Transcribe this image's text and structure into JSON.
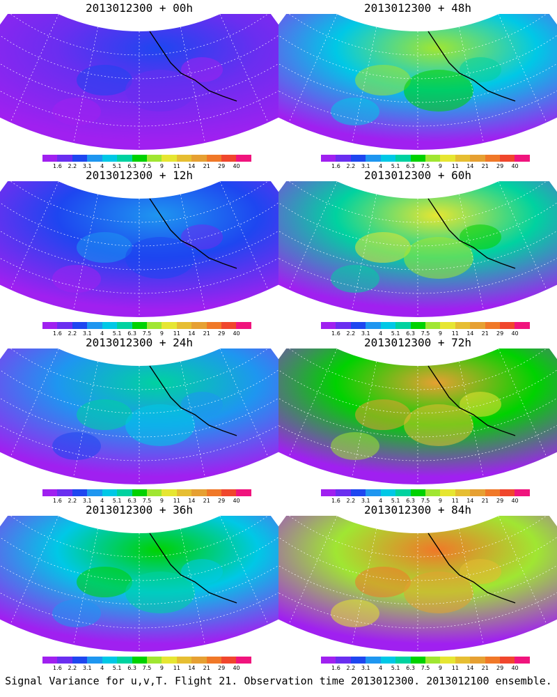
{
  "panels": [
    {
      "title": "2013012300 + 00h",
      "level": 0.15
    },
    {
      "title": "2013012300 + 48h",
      "level": 0.55
    },
    {
      "title": "2013012300 + 12h",
      "level": 0.25
    },
    {
      "title": "2013012300 + 60h",
      "level": 0.65
    },
    {
      "title": "2013012300 + 24h",
      "level": 0.35
    },
    {
      "title": "2013012300 + 72h",
      "level": 0.75
    },
    {
      "title": "2013012300 + 36h",
      "level": 0.45
    },
    {
      "title": "2013012300 + 84h",
      "level": 0.85
    }
  ],
  "colorbar": {
    "labels": [
      "1.6",
      "2.2",
      "3.1",
      "4",
      "5.1",
      "6.3",
      "7.5",
      "9",
      "11",
      "14",
      "21",
      "29",
      "40"
    ],
    "colors": [
      "#a020f0",
      "#6a2ef0",
      "#1e46f0",
      "#1e96f0",
      "#00c8e6",
      "#00d2a0",
      "#00d200",
      "#a0e632",
      "#e6e632",
      "#e6be32",
      "#e6a032",
      "#f07828",
      "#f0462d",
      "#f0147d"
    ]
  },
  "caption": "Signal Variance for u,v,T. Flight 21. Observation time 2013012300. 2013012100 ensemble."
}
